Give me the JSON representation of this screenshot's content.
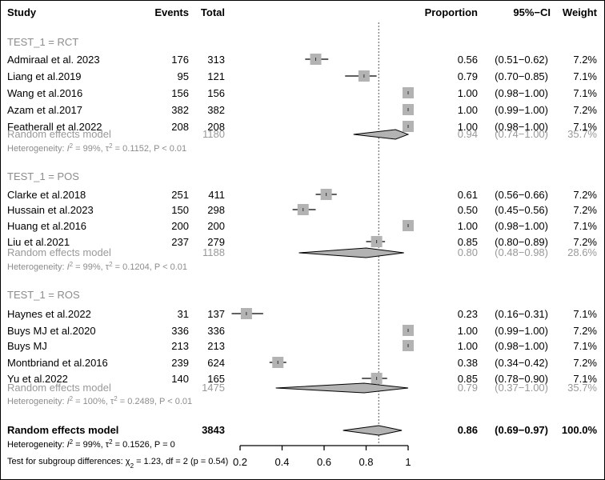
{
  "chart_data": {
    "type": "forest",
    "headers": {
      "study": "Study",
      "events": "Events",
      "total": "Total",
      "proportion": "Proportion",
      "ci": "95%−CI",
      "weight": "Weight"
    },
    "xlim": [
      0.2,
      1
    ],
    "ticks": [
      "0.2",
      "0.4",
      "0.6",
      "0.8",
      "1"
    ],
    "reference_line": 0.86,
    "groups": [
      {
        "label": "TEST_1 = RCT",
        "studies": [
          {
            "name": "Admiraal et al. 2023",
            "events": "176",
            "total": "313",
            "prop": 0.56,
            "lo": 0.51,
            "hi": 0.62,
            "ci": "(0.51−0.62)",
            "prop_label": "0.56",
            "weight": "7.2%"
          },
          {
            "name": "Liang et al.2019",
            "events": "95",
            "total": "121",
            "prop": 0.79,
            "lo": 0.7,
            "hi": 0.85,
            "ci": "(0.70−0.85)",
            "prop_label": "0.79",
            "weight": "7.1%"
          },
          {
            "name": "Wang et al.2016",
            "events": "156",
            "total": "156",
            "prop": 1.0,
            "lo": 0.98,
            "hi": 1.0,
            "ci": "(0.98−1.00)",
            "prop_label": "1.00",
            "weight": "7.1%"
          },
          {
            "name": "Azam et al.2017",
            "events": "382",
            "total": "382",
            "prop": 1.0,
            "lo": 0.99,
            "hi": 1.0,
            "ci": "(0.99−1.00)",
            "prop_label": "1.00",
            "weight": "7.2%"
          },
          {
            "name": "Featherall et al.2022",
            "events": "208",
            "total": "208",
            "prop": 1.0,
            "lo": 0.98,
            "hi": 1.0,
            "ci": "(0.98−1.00)",
            "prop_label": "1.00",
            "weight": "7.1%"
          }
        ],
        "model": {
          "label": "Random effects model",
          "total": "1180",
          "prop": 0.94,
          "lo": 0.74,
          "hi": 1.0,
          "prop_label": "0.94",
          "ci": "(0.74−1.00)",
          "weight": "35.7%"
        },
        "heterogeneity": "Heterogeneity: I² = 99%, τ² = 0.1152, P < 0.01"
      },
      {
        "label": "TEST_1 = POS",
        "studies": [
          {
            "name": "Clarke et al.2018",
            "events": "251",
            "total": "411",
            "prop": 0.61,
            "lo": 0.56,
            "hi": 0.66,
            "ci": "(0.56−0.66)",
            "prop_label": "0.61",
            "weight": "7.2%"
          },
          {
            "name": "Hussain et al.2023",
            "events": "150",
            "total": "298",
            "prop": 0.5,
            "lo": 0.45,
            "hi": 0.56,
            "ci": "(0.45−0.56)",
            "prop_label": "0.50",
            "weight": "7.2%"
          },
          {
            "name": "Huang et al.2016",
            "events": "200",
            "total": "200",
            "prop": 1.0,
            "lo": 0.98,
            "hi": 1.0,
            "ci": "(0.98−1.00)",
            "prop_label": "1.00",
            "weight": "7.1%"
          },
          {
            "name": "Liu et al.2021",
            "events": "237",
            "total": "279",
            "prop": 0.85,
            "lo": 0.8,
            "hi": 0.89,
            "ci": "(0.80−0.89)",
            "prop_label": "0.85",
            "weight": "7.2%"
          }
        ],
        "model": {
          "label": "Random effects model",
          "total": "1188",
          "prop": 0.8,
          "lo": 0.48,
          "hi": 0.98,
          "prop_label": "0.80",
          "ci": "(0.48−0.98)",
          "weight": "28.6%"
        },
        "heterogeneity": "Heterogeneity: I² = 99%, τ² = 0.1204, P < 0.01"
      },
      {
        "label": "TEST_1 = ROS",
        "studies": [
          {
            "name": "Haynes et al.2022",
            "events": "31",
            "total": "137",
            "prop": 0.23,
            "lo": 0.16,
            "hi": 0.31,
            "ci": "(0.16−0.31)",
            "prop_label": "0.23",
            "weight": "7.1%"
          },
          {
            "name": "Buys MJ et al.2020",
            "events": "336",
            "total": "336",
            "prop": 1.0,
            "lo": 0.99,
            "hi": 1.0,
            "ci": "(0.99−1.00)",
            "prop_label": "1.00",
            "weight": "7.2%"
          },
          {
            "name": "Buys MJ",
            "events": "213",
            "total": "213",
            "prop": 1.0,
            "lo": 0.98,
            "hi": 1.0,
            "ci": "(0.98−1.00)",
            "prop_label": "1.00",
            "weight": "7.1%"
          },
          {
            "name": "Montbriand et al.2016",
            "events": "239",
            "total": "624",
            "prop": 0.38,
            "lo": 0.34,
            "hi": 0.42,
            "ci": "(0.34−0.42)",
            "prop_label": "0.38",
            "weight": "7.2%"
          },
          {
            "name": "Yu et al.2022",
            "events": "140",
            "total": "165",
            "prop": 0.85,
            "lo": 0.78,
            "hi": 0.9,
            "ci": "(0.78−0.90)",
            "prop_label": "0.85",
            "weight": "7.1%"
          }
        ],
        "model": {
          "label": "Random effects model",
          "total": "1475",
          "prop": 0.79,
          "lo": 0.37,
          "hi": 1.0,
          "prop_label": "0.79",
          "ci": "(0.37−1.00)",
          "weight": "35.7%"
        },
        "heterogeneity": "Heterogeneity: I² = 100%, τ² = 0.2489, P < 0.01"
      }
    ],
    "overall": {
      "label": "Random effects model",
      "total": "3843",
      "prop": 0.86,
      "lo": 0.69,
      "hi": 0.97,
      "prop_label": "0.86",
      "ci": "(0.69−0.97)",
      "weight": "100.0%"
    },
    "overall_heterogeneity": "Heterogeneity: I² = 99%, τ² = 0.1526, P = 0",
    "subgroup_test": "Test for subgroup differences: χ²₂ = 1.23, df = 2 (p = 0.54)"
  }
}
